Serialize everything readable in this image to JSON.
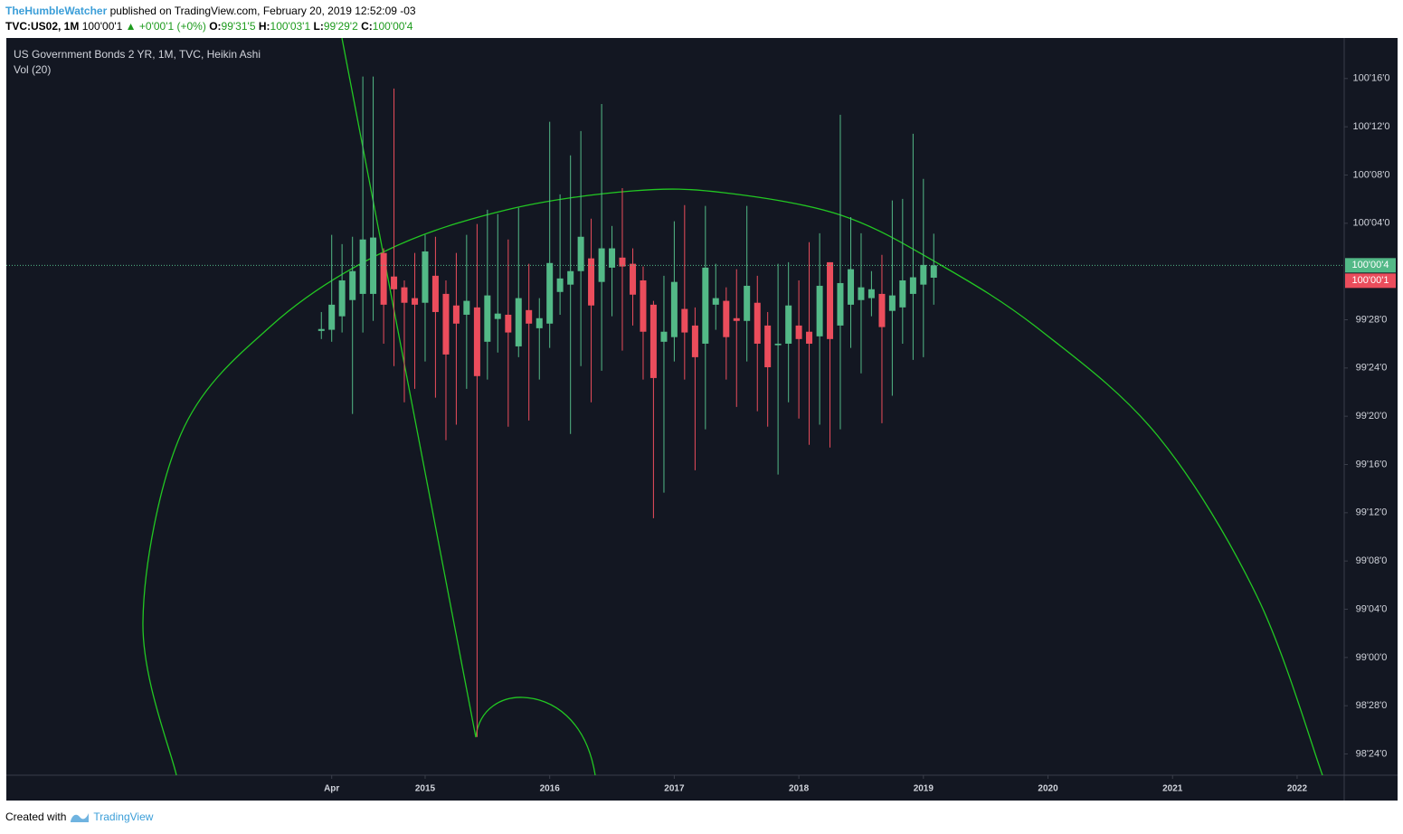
{
  "header": {
    "author": "TheHumbleWatcher",
    "published": "published on TradingView.com, February 20, 2019 12:52:09 -03",
    "symbol": "TVC:US02, 1M",
    "last": "100'00'1",
    "change": "▲ +0'00'1 (+0%)",
    "ohlc": [
      {
        "label": "O:",
        "value": "99'31'5"
      },
      {
        "label": "H:",
        "value": "100'03'1"
      },
      {
        "label": "L:",
        "value": "99'29'2"
      },
      {
        "label": "C:",
        "value": "100'00'4"
      }
    ]
  },
  "chart_data": {
    "type": "candlestick",
    "title": "US Government Bonds 2 YR, 1M, TVC, Heikin Ashi",
    "indicator": "Vol (20)",
    "up_color": "#53b987",
    "down_color": "#eb4d5c",
    "x": [
      2014.167,
      2014.25,
      2014.333,
      2014.417,
      2014.5,
      2014.583,
      2014.667,
      2014.75,
      2014.833,
      2014.917,
      2015.0,
      2015.083,
      2015.167,
      2015.25,
      2015.333,
      2015.417,
      2015.5,
      2015.583,
      2015.667,
      2015.75,
      2015.833,
      2015.917,
      2016.0,
      2016.083,
      2016.167,
      2016.25,
      2016.333,
      2016.417,
      2016.5,
      2016.583,
      2016.667,
      2016.75,
      2016.833,
      2016.917,
      2017.0,
      2017.083,
      2017.167,
      2017.25,
      2017.333,
      2017.417,
      2017.5,
      2017.583,
      2017.667,
      2017.75,
      2017.833,
      2017.917,
      2018.0,
      2018.083,
      2018.167,
      2018.25,
      2018.333,
      2018.417,
      2018.5,
      2018.583,
      2018.667,
      2018.75,
      2018.833,
      2018.917,
      2019.0,
      2019.083
    ],
    "open": [
      99.846,
      99.849,
      99.884,
      99.926,
      99.942,
      99.942,
      100.048,
      99.987,
      99.959,
      99.931,
      99.919,
      99.989,
      99.942,
      99.912,
      99.888,
      99.907,
      99.818,
      99.877,
      99.888,
      99.806,
      99.9,
      99.853,
      99.865,
      99.947,
      99.966,
      100.001,
      100.034,
      99.973,
      100.01,
      100.036,
      100.02,
      99.977,
      99.914,
      99.818,
      99.83,
      99.903,
      99.86,
      99.813,
      99.914,
      99.924,
      99.879,
      99.872,
      99.919,
      99.86,
      99.809,
      99.813,
      99.86,
      99.844,
      99.832,
      100.024,
      99.86,
      99.914,
      99.926,
      99.931,
      99.942,
      99.898,
      99.907,
      99.942,
      99.966,
      99.984
    ],
    "high": [
      99.895,
      100.095,
      100.071,
      100.09,
      100.505,
      100.505,
      100.06,
      100.474,
      99.977,
      100.048,
      100.095,
      100.09,
      99.977,
      100.048,
      100.095,
      100.123,
      100.16,
      100.149,
      100.083,
      100.165,
      100.02,
      99.931,
      100.388,
      100.2,
      100.301,
      100.364,
      100.137,
      100.434,
      100.118,
      100.216,
      100.06,
      100.013,
      99.924,
      99.989,
      100.13,
      100.172,
      99.907,
      100.17,
      100.02,
      99.959,
      100.006,
      100.17,
      99.989,
      99.895,
      100.02,
      100.024,
      99.977,
      100.076,
      100.099,
      100.024,
      100.406,
      100.141,
      100.099,
      100.001,
      100.043,
      100.184,
      100.188,
      100.357,
      100.24,
      100.098
    ],
    "low": [
      99.825,
      99.818,
      99.842,
      99.631,
      99.842,
      99.872,
      99.813,
      99.755,
      99.661,
      99.696,
      99.767,
      99.673,
      99.563,
      99.603,
      99.696,
      98.794,
      99.72,
      99.79,
      99.598,
      99.778,
      99.614,
      99.72,
      99.802,
      99.888,
      99.579,
      99.755,
      99.661,
      99.743,
      99.884,
      99.795,
      99.86,
      99.72,
      99.361,
      99.427,
      99.767,
      99.72,
      99.485,
      99.591,
      99.849,
      99.72,
      99.649,
      99.767,
      99.638,
      99.598,
      99.474,
      99.661,
      99.619,
      99.551,
      99.603,
      99.544,
      99.591,
      99.802,
      99.736,
      99.884,
      99.607,
      99.678,
      99.813,
      99.771,
      99.778,
      99.914
    ],
    "close": [
      99.851,
      99.914,
      99.977,
      100.001,
      100.083,
      100.088,
      99.914,
      99.954,
      99.919,
      99.914,
      100.052,
      99.895,
      99.785,
      99.865,
      99.924,
      99.729,
      99.938,
      99.891,
      99.842,
      99.931,
      99.865,
      99.879,
      100.022,
      99.982,
      100.001,
      100.09,
      99.912,
      100.06,
      100.06,
      100.013,
      99.94,
      99.844,
      99.724,
      99.844,
      99.973,
      99.842,
      99.778,
      100.01,
      99.931,
      99.83,
      99.872,
      99.963,
      99.813,
      99.752,
      99.813,
      99.912,
      99.825,
      99.813,
      99.963,
      99.825,
      99.97,
      100.006,
      99.959,
      99.954,
      99.856,
      99.938,
      99.977,
      99.985,
      100.017,
      100.016
    ],
    "xlim": [
      2011.638,
      2022.378
    ],
    "xticks": [
      {
        "value": 2014.25,
        "label": "Apr"
      },
      2015,
      2016,
      2017,
      2018,
      2019,
      2020,
      2021,
      2022
    ],
    "ylim": [
      98.695,
      100.605
    ],
    "yticks": [
      {
        "value": 100.5,
        "label": "100'16'0"
      },
      {
        "value": 100.375,
        "label": "100'12'0"
      },
      {
        "value": 100.25,
        "label": "100'08'0"
      },
      {
        "value": 100.125,
        "label": "100'04'0"
      },
      {
        "value": 99.875,
        "label": "99'28'0"
      },
      {
        "value": 99.75,
        "label": "99'24'0"
      },
      {
        "value": 99.625,
        "label": "99'20'0"
      },
      {
        "value": 99.5,
        "label": "99'16'0"
      },
      {
        "value": 99.375,
        "label": "99'12'0"
      },
      {
        "value": 99.25,
        "label": "99'08'0"
      },
      {
        "value": 99.125,
        "label": "99'04'0"
      },
      {
        "value": 99.0,
        "label": "99'00'0"
      },
      {
        "value": 98.875,
        "label": "98'28'0"
      },
      {
        "value": 98.75,
        "label": "98'24'0"
      }
    ],
    "price_labels": [
      {
        "value": 100.016,
        "label": "100'00'4",
        "color": "#53b987"
      },
      {
        "value": 100.004,
        "label": "100'00'1",
        "color": "#eb4d5c"
      }
    ],
    "grid": false
  },
  "footer": {
    "text": "Created with",
    "brand": "TradingView"
  }
}
